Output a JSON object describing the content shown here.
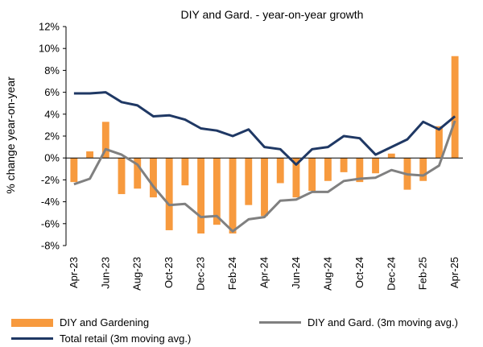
{
  "chart_data": {
    "type": "bar+line",
    "title": "DIY and Gard. - year-on-year  growth",
    "ylabel": "% change year-on-year",
    "xlabel": "",
    "ylim": [
      -8,
      12
    ],
    "yticks": [
      "-8%",
      "-6%",
      "-4%",
      "-2%",
      "0%",
      "2%",
      "4%",
      "6%",
      "8%",
      "10%",
      "12%"
    ],
    "ytick_values": [
      -8,
      -6,
      -4,
      -2,
      0,
      2,
      4,
      6,
      8,
      10,
      12
    ],
    "categories": [
      "Apr-23",
      "May-23",
      "Jun-23",
      "Jul-23",
      "Aug-23",
      "Sep-23",
      "Oct-23",
      "Nov-23",
      "Dec-23",
      "Jan-24",
      "Feb-24",
      "Mar-24",
      "Apr-24",
      "May-24",
      "Jun-24",
      "Jul-24",
      "Aug-24",
      "Sep-24",
      "Oct-24",
      "Nov-24",
      "Dec-24",
      "Jan-25",
      "Feb-25",
      "Mar-25",
      "Apr-25"
    ],
    "xtick_labels": [
      "Apr-23",
      "Jun-23",
      "Aug-23",
      "Oct-23",
      "Dec-23",
      "Feb-24",
      "Apr-24",
      "Jun-24",
      "Aug-24",
      "Oct-24",
      "Dec-24",
      "Feb-25",
      "Apr-25"
    ],
    "grid": false,
    "legend_position": "bottom",
    "series": [
      {
        "name": "DIY and Gardening",
        "kind": "bar",
        "color": "#F79A3E",
        "values": [
          -2.2,
          0.6,
          3.3,
          -3.3,
          -2.8,
          -3.6,
          -6.6,
          -2.5,
          -6.9,
          -6.1,
          -6.9,
          -4.3,
          -5.3,
          -2.3,
          -3.6,
          -3.0,
          -2.1,
          -1.3,
          -2.2,
          -1.4,
          0.4,
          -2.9,
          -2.1,
          2.9,
          9.3
        ]
      },
      {
        "name": "DIY and Gard. (3m moving avg.)",
        "kind": "line",
        "color": "#808080",
        "values": [
          -2.4,
          -1.9,
          0.8,
          0.3,
          -0.6,
          -2.6,
          -4.3,
          -4.2,
          -5.4,
          -5.3,
          -6.7,
          -5.6,
          -5.4,
          -3.9,
          -3.8,
          -3.1,
          -3.1,
          -2.1,
          -1.9,
          -1.8,
          -1.1,
          -1.5,
          -1.6,
          -0.7,
          3.4
        ]
      },
      {
        "name": "Total retail (3m moving avg.)",
        "kind": "line",
        "color": "#1F3864",
        "values": [
          5.9,
          5.9,
          6.0,
          5.1,
          4.8,
          3.8,
          3.9,
          3.5,
          2.7,
          2.5,
          2.0,
          2.6,
          1.0,
          0.8,
          -0.6,
          0.8,
          1.0,
          2.0,
          1.8,
          0.3,
          1.0,
          1.7,
          3.3,
          2.6,
          3.8
        ]
      }
    ]
  }
}
